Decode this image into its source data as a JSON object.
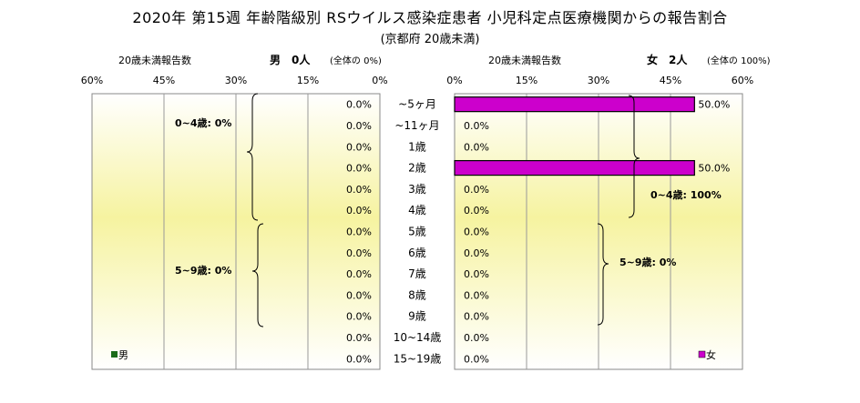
{
  "header": {
    "title": "2020年 第15週 年齢階級別 RSウイルス感染症患者 小児科定点医療機関からの報告割合",
    "subtitle": "(京都府 20歳未満)"
  },
  "left_panel": {
    "caption": "20歳未満報告数",
    "sex": "男",
    "count": "0人",
    "share_note": "(全体の  0%)",
    "legend": "男",
    "color": "#1a6b1a"
  },
  "right_panel": {
    "caption": "20歳未満報告数",
    "sex": "女",
    "count": "2人",
    "share_note": "(全体の  100%)",
    "legend": "女",
    "color": "#cc00cc"
  },
  "chart_data": {
    "type": "bar",
    "orientation": "horizontal-butterfly",
    "xlim": [
      0,
      60
    ],
    "xticks": [
      "0%",
      "15%",
      "30%",
      "45%",
      "60%"
    ],
    "left_xticks": [
      "60%",
      "45%",
      "30%",
      "15%",
      "0%"
    ],
    "categories": [
      "~5ヶ月",
      "~11ヶ月",
      "1歳",
      "2歳",
      "3歳",
      "4歳",
      "5歳",
      "6歳",
      "7歳",
      "8歳",
      "9歳",
      "10~14歳",
      "15~19歳"
    ],
    "series": [
      {
        "name": "男",
        "values": [
          0,
          0,
          0,
          0,
          0,
          0,
          0,
          0,
          0,
          0,
          0,
          0,
          0
        ],
        "labels": [
          "0.0%",
          "0.0%",
          "0.0%",
          "0.0%",
          "0.0%",
          "0.0%",
          "0.0%",
          "0.0%",
          "0.0%",
          "0.0%",
          "0.0%",
          "0.0%",
          "0.0%"
        ]
      },
      {
        "name": "女",
        "values": [
          50,
          0,
          0,
          50,
          0,
          0,
          0,
          0,
          0,
          0,
          0,
          0,
          0
        ],
        "labels": [
          "50.0%",
          "0.0%",
          "0.0%",
          "50.0%",
          "0.0%",
          "0.0%",
          "0.0%",
          "0.0%",
          "0.0%",
          "0.0%",
          "0.0%",
          "0.0%",
          "0.0%"
        ]
      }
    ],
    "annotations": {
      "male_0_4": "0~4歳: 0%",
      "male_5_9": "5~9歳: 0%",
      "female_0_4": "0~4歳: 100%",
      "female_5_9": "5~9歳: 0%"
    }
  }
}
